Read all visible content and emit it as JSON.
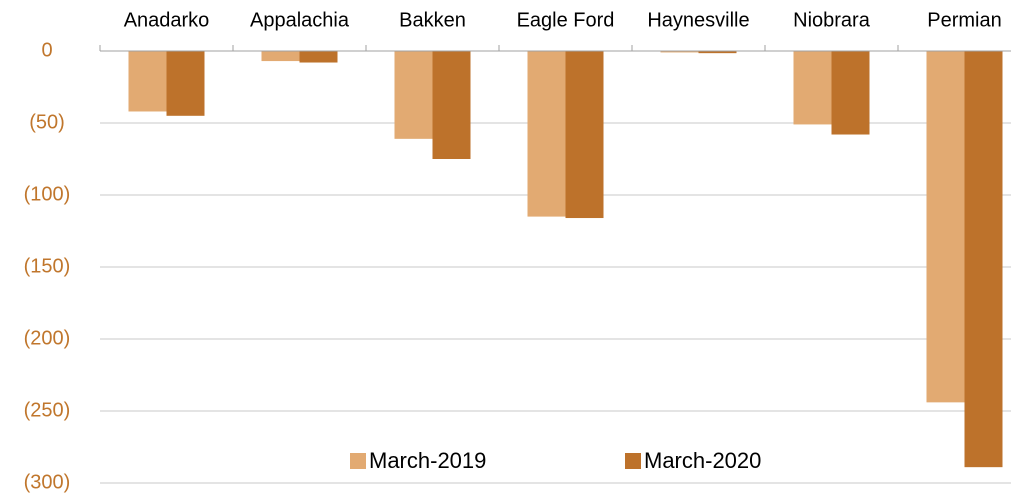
{
  "chart_data": {
    "type": "bar",
    "categories": [
      "Anadarko",
      "Appalachia",
      "Bakken",
      "Eagle Ford",
      "Haynesville",
      "Niobrara",
      "Permian"
    ],
    "series": [
      {
        "name": "March-2019",
        "color": "#e2aa72",
        "values": [
          -42,
          -7,
          -61,
          -115,
          -1,
          -51,
          -244
        ]
      },
      {
        "name": "March-2020",
        "color": "#bd722b",
        "values": [
          -45,
          -8,
          -75,
          -116,
          -1.5,
          -58,
          -289
        ]
      }
    ],
    "ylim": [
      -300,
      0
    ],
    "yticks": [
      0,
      {
        "value": -50,
        "label": "(50)"
      },
      {
        "value": -100,
        "label": "(100)"
      },
      {
        "value": -150,
        "label": "(150)"
      },
      {
        "value": -200,
        "label": "(200)"
      },
      {
        "value": -250,
        "label": "(250)"
      },
      {
        "value": -300,
        "label": "(300)"
      }
    ],
    "grid": true,
    "tick_color": "#c0762c",
    "legend_position": "bottom"
  }
}
